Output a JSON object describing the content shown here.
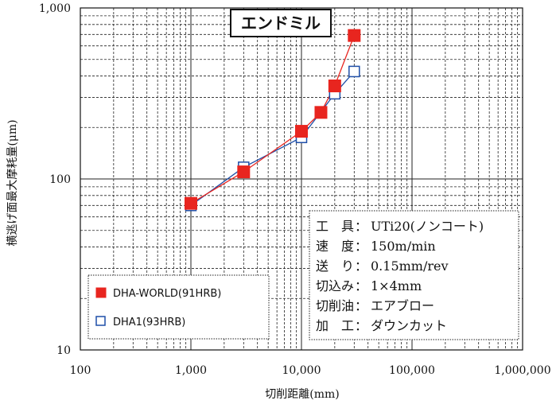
{
  "chart_data": {
    "type": "line",
    "title": "エンドミル",
    "xlabel": "切削距離(mm)",
    "ylabel": "横逃げ面最大摩耗量(μm)",
    "x_scale": "log",
    "y_scale": "log",
    "xlim": [
      100,
      1000000
    ],
    "ylim": [
      10,
      1000
    ],
    "grid": true,
    "x_ticks": [
      "100",
      "1,000",
      "10,000",
      "100,000",
      "1,000,000"
    ],
    "y_ticks": [
      "10",
      "100",
      "1,000"
    ],
    "legend_position": "bottom-left",
    "series": [
      {
        "name": "DHA-WORLD(91HRB)",
        "marker": "filled-square",
        "color": "#e8251f",
        "line_color": "#e8251f",
        "x": [
          1000,
          3000,
          10000,
          15000,
          20000,
          30000
        ],
        "y": [
          72,
          110,
          190,
          245,
          350,
          690
        ]
      },
      {
        "name": "DHA1(93HRB)",
        "marker": "open-square",
        "color": "#1f4fa8",
        "line_color": "#1f4fa8",
        "x": [
          1000,
          3000,
          10000,
          20000,
          30000
        ],
        "y": [
          70,
          117,
          175,
          315,
          425
        ]
      }
    ],
    "conditions": [
      {
        "label": "工　具",
        "value": "UTi20(ノンコート)"
      },
      {
        "label": "速　度",
        "value": "150m/min"
      },
      {
        "label": "送　り",
        "value": "0.15mm/rev"
      },
      {
        "label": "切込み",
        "value": "1×4mm"
      },
      {
        "label": "切削油",
        "value": "エアブロー"
      },
      {
        "label": "加　工",
        "value": "ダウンカット"
      }
    ]
  }
}
